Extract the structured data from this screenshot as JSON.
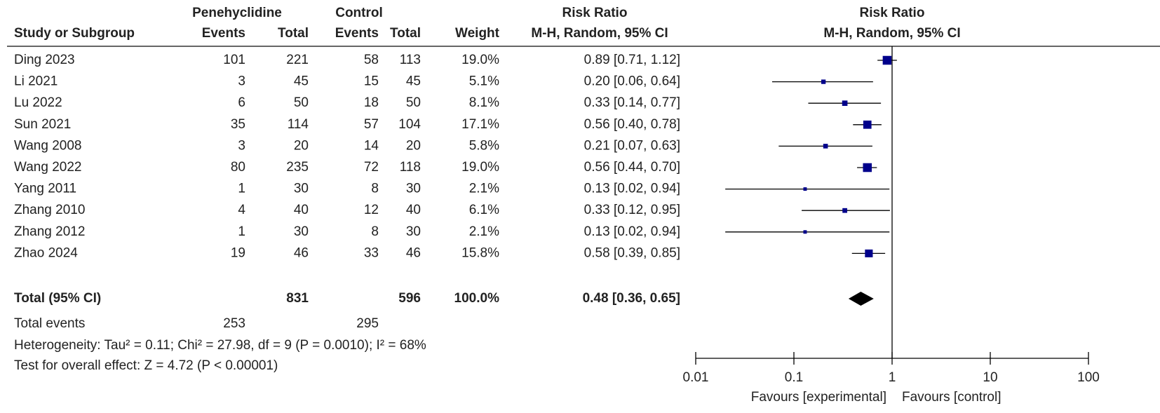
{
  "chart_data": {
    "type": "forest",
    "group_headers": [
      "Penehyclidine",
      "Control"
    ],
    "columns": [
      "Study or Subgroup",
      "Events",
      "Total",
      "Events",
      "Total",
      "Weight"
    ],
    "effect_header": [
      "Risk Ratio",
      "M-H, Random, 95% CI"
    ],
    "studies": [
      "Ding 2023",
      "Li 2021",
      "Lu 2022",
      "Sun 2021",
      "Wang 2008",
      "Wang 2022",
      "Yang 2011",
      "Zhang 2010",
      "Zhang 2012",
      "Zhao 2024"
    ],
    "exp_events": [
      101,
      3,
      6,
      35,
      3,
      80,
      1,
      4,
      1,
      19
    ],
    "exp_total": [
      221,
      45,
      50,
      114,
      20,
      235,
      30,
      40,
      30,
      46
    ],
    "ctrl_events": [
      58,
      15,
      18,
      57,
      14,
      72,
      8,
      12,
      8,
      33
    ],
    "ctrl_total": [
      113,
      45,
      50,
      104,
      20,
      118,
      30,
      40,
      30,
      46
    ],
    "weight": {
      "values": [
        19.0,
        5.1,
        8.1,
        17.1,
        5.8,
        19.0,
        2.1,
        6.1,
        2.1,
        15.8
      ],
      "value_labels": [
        "19.0%",
        "5.1%",
        "8.1%",
        "17.1%",
        "5.8%",
        "19.0%",
        "2.1%",
        "6.1%",
        "2.1%",
        "15.8%"
      ]
    },
    "rr": {
      "values": [
        0.89,
        0.2,
        0.33,
        0.56,
        0.21,
        0.56,
        0.13,
        0.33,
        0.13,
        0.58
      ],
      "lower": [
        0.71,
        0.06,
        0.14,
        0.4,
        0.07,
        0.44,
        0.02,
        0.12,
        0.02,
        0.39
      ],
      "upper": [
        1.12,
        0.64,
        0.77,
        0.78,
        0.63,
        0.7,
        0.94,
        0.95,
        0.94,
        0.85
      ],
      "value_labels": [
        "0.89 [0.71, 1.12]",
        "0.20 [0.06, 0.64]",
        "0.33 [0.14, 0.77]",
        "0.56 [0.40, 0.78]",
        "0.21 [0.07, 0.63]",
        "0.56 [0.44, 0.70]",
        "0.13 [0.02, 0.94]",
        "0.33 [0.12, 0.95]",
        "0.13 [0.02, 0.94]",
        "0.58 [0.39, 0.85]"
      ]
    },
    "total": {
      "label": "Total (95% CI)",
      "exp_total": 831,
      "ctrl_total": 596,
      "weight": 100.0,
      "weight_label": "100.0%",
      "rr": 0.48,
      "lower": 0.36,
      "upper": 0.65,
      "rr_label": "0.48 [0.36, 0.65]"
    },
    "total_events": {
      "label": "Total events",
      "exp": 253,
      "ctrl": 295
    },
    "heterogeneity": "Heterogeneity: Tau² = 0.11; Chi² = 27.98, df = 9 (P = 0.0010); I² = 68%",
    "overall_effect": "Test for overall effect: Z = 4.72 (P < 0.00001)",
    "log_x": true,
    "xlim": [
      0.01,
      100
    ],
    "xticks": [
      0.01,
      0.1,
      1,
      10,
      100
    ],
    "favours": [
      "Favours [experimental]",
      "Favours [control]"
    ],
    "color": "#00008b"
  }
}
